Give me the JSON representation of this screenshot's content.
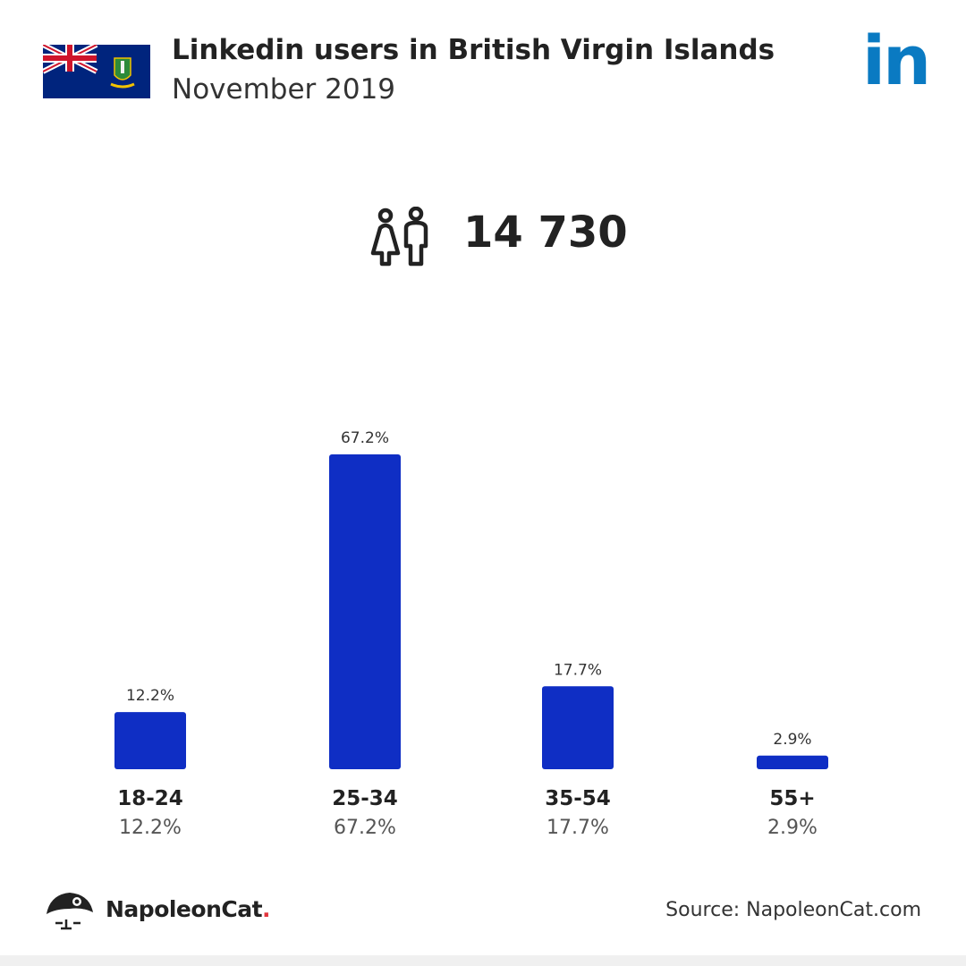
{
  "header": {
    "title": "Linkedin users in British Virgin Islands",
    "subtitle": "November 2019"
  },
  "logo": {
    "text": "in",
    "icon": "linkedin-logo",
    "color": "#0a7ac2"
  },
  "summary": {
    "total_users": "14 730",
    "icon": "users-male-female-icon"
  },
  "chart_data": {
    "type": "bar",
    "categories": [
      "18-24",
      "25-34",
      "35-54",
      "55+"
    ],
    "values": [
      12.2,
      67.2,
      17.7,
      2.9
    ],
    "value_labels": [
      "12.2%",
      "67.2%",
      "17.7%",
      "2.9%"
    ],
    "ylim": [
      0,
      67.2
    ],
    "bar_color": "#0f2ec4",
    "grid": false
  },
  "footer": {
    "brand": "NapoleonCat",
    "brand_dot": ".",
    "source": "Source: NapoleonCat.com"
  },
  "colors": {
    "accent": "#0f2ec4",
    "linkedin": "#0a7ac2",
    "brand_dot": "#e2353d",
    "text": "#222222"
  }
}
